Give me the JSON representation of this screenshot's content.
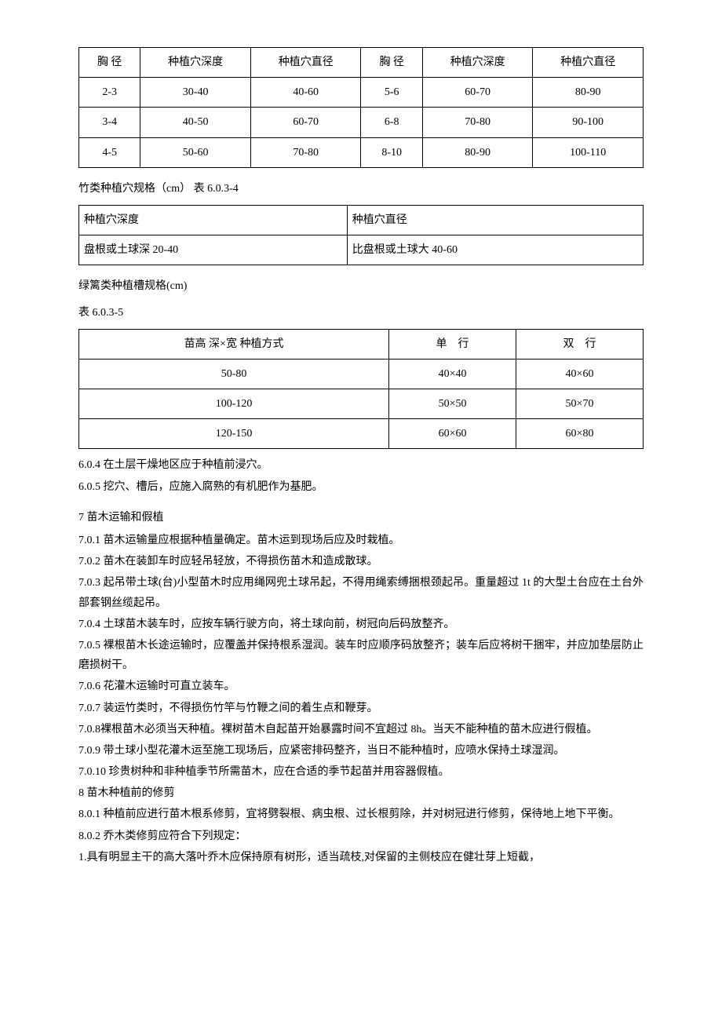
{
  "table1": {
    "headers": [
      "胸 径",
      "种植穴深度",
      "种植穴直径",
      "胸 径",
      "种植穴深度",
      "种植穴直径"
    ],
    "rows": [
      [
        "2-3",
        "30-40",
        "40-60",
        "5-6",
        "60-70",
        "80-90"
      ],
      [
        "3-4",
        "40-50",
        "60-70",
        "6-8",
        "70-80",
        "90-100"
      ],
      [
        "4-5",
        "50-60",
        "70-80",
        "8-10",
        "80-90",
        "100-110"
      ]
    ]
  },
  "table2": {
    "title": "竹类种植穴规格（cm） 表 6.0.3-4",
    "rows": [
      [
        "种植穴深度",
        "种植穴直径"
      ],
      [
        "盘根或土球深 20-40",
        "比盘根或土球大 40-60"
      ]
    ]
  },
  "table3": {
    "title": "绿篱类种植槽规格(cm)",
    "subtitle": "表 6.0.3-5",
    "headers": [
      "苗高 深×宽 种植方式",
      "单　行",
      "双　行"
    ],
    "rows": [
      [
        "50-80",
        "40×40",
        "40×60"
      ],
      [
        "100-120",
        "50×50",
        "50×70"
      ],
      [
        "120-150",
        "60×60",
        "60×80"
      ]
    ]
  },
  "para_604": "6.0.4 在土层干燥地区应于种植前浸穴。",
  "para_605": "6.0.5 挖穴、槽后，应施入腐熟的有机肥作为基肥。",
  "section7_title": "7 苗木运输和假植",
  "para_701": "7.0.1 苗木运输量应根据种植量确定。苗木运到现场后应及时栽植。",
  "para_702": "7.0.2 苗木在装卸车时应轻吊轻放，不得损伤苗木和造成散球。",
  "para_703": "7.0.3 起吊带土球(台)小型苗木时应用绳网兜土球吊起，不得用绳索缚捆根颈起吊。重量超过 1t 的大型土台应在土台外部套钢丝缆起吊。",
  "para_704": "7.0.4 土球苗木装车时，应按车辆行驶方向，将土球向前，树冠向后码放整齐。",
  "para_705": "7.0.5 裸根苗木长途运输时，应覆盖并保持根系湿润。装车时应顺序码放整齐；装车后应将树干捆牢，并应加垫层防止磨损树干。",
  "para_706": "7.0.6 花灌木运输时可直立装车。",
  "para_707": "7.0.7 装运竹类时，不得损伤竹竿与竹鞭之间的着生点和鞭芽。",
  "para_708": "7.0.8裸根苗木必须当天种植。裸树苗木自起苗开始暴露时间不宜超过 8h。当天不能种植的苗木应进行假植。",
  "para_709": "7.0.9 带土球小型花灌木运至施工现场后，应紧密排码整齐，当日不能种植时，应喷水保持土球湿润。",
  "para_7010": "7.0.10 珍贵树种和非种植季节所需苗木，应在合适的季节起苗并用容器假植。",
  "section8_title": "8 苗木种植前的修剪",
  "para_801": "8.0.1 种植前应进行苗木根系修剪，宜将劈裂根、病虫根、过长根剪除，并对树冠进行修剪，保待地上地下平衡。",
  "para_802": "8.0.2 乔木类修剪应符合下列规定：",
  "para_802_1": "1.具有明显主干的高大落叶乔木应保持原有树形，适当疏枝,对保留的主侧枝应在健壮芽上短截，"
}
